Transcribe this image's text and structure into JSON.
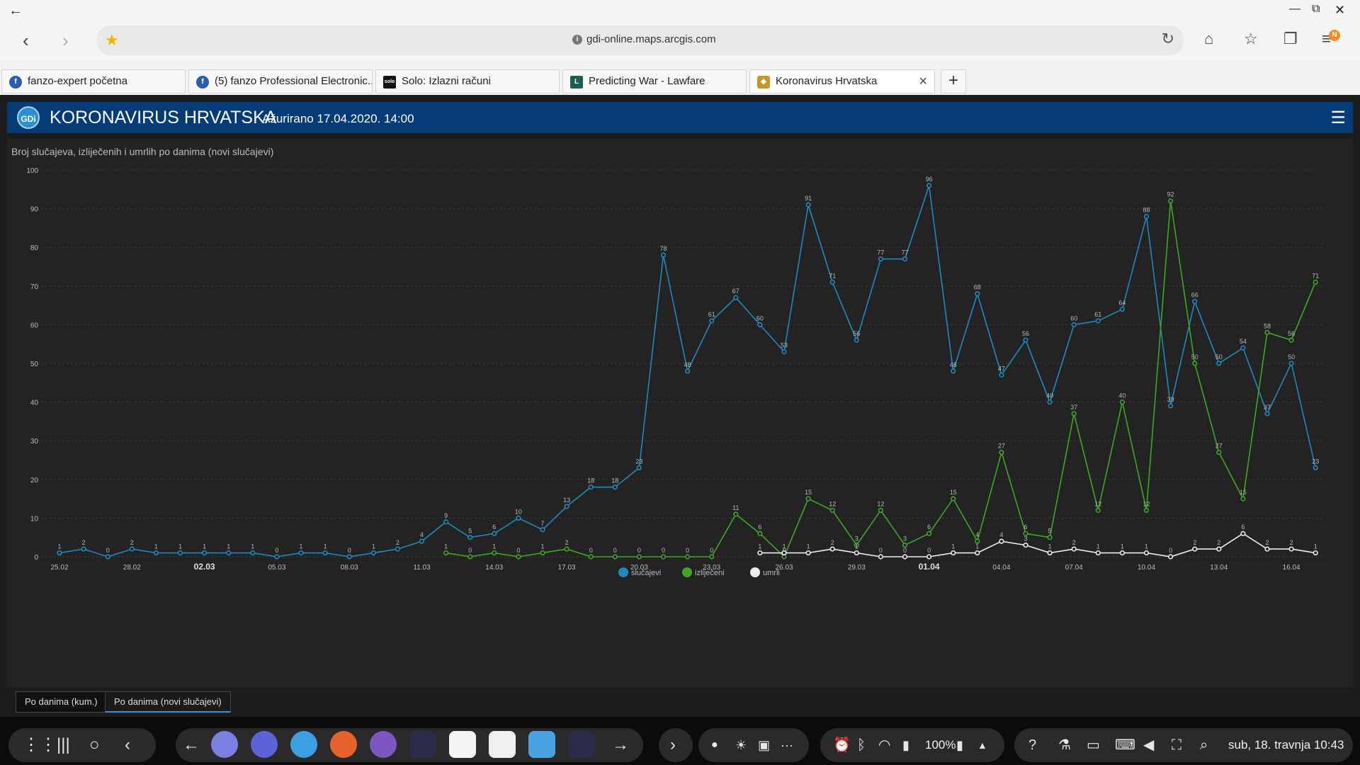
{
  "browser": {
    "url": "gdi-online.maps.arcgis.com",
    "menu_badge": "N",
    "tabs": [
      {
        "label": "fanzo-expert početna",
        "favicon": "f",
        "color": "#2a5db0"
      },
      {
        "label": "(5) fanzo Professional Electronic...",
        "favicon": "f",
        "color": "#2a5db0"
      },
      {
        "label": "Solo: Izlazni računi",
        "favicon": "solo",
        "color": "#111111"
      },
      {
        "label": "Predicting War - Lawfare",
        "favicon": "L",
        "color": "#1f5d52"
      },
      {
        "label": "Koronavirus Hrvatska",
        "favicon": "shield",
        "color": "#c9952a"
      }
    ]
  },
  "app": {
    "logo": "GDi",
    "title": "KORONAVIRUS HRVATSKA",
    "updated": "Ažurirano 17.04.2020. 14:00",
    "chart_title": "Broj slučajeva, izliječenih i umrlih po danima (novi slučajevi)",
    "bottom_tabs": [
      "Po danima (kum.)",
      "Po danima (novi slučajevi)"
    ],
    "active_bottom_tab": 1
  },
  "chart_data": {
    "type": "line",
    "title": "Broj slučajeva, izliječenih i umrlih po danima (novi slučajevi)",
    "x_start": "25.02",
    "x_tick_labels": [
      "25.02",
      "28.02",
      "02.03",
      "05.03",
      "08.03",
      "11.03",
      "14.03",
      "17.03",
      "20.03",
      "23.03",
      "26.03",
      "29.03",
      "01.04",
      "04.04",
      "07.04",
      "10.04",
      "13.04",
      "16.04"
    ],
    "bold_ticks": [
      "02.03",
      "01.04"
    ],
    "y_ticks": [
      0,
      10,
      20,
      30,
      40,
      50,
      60,
      70,
      80,
      90,
      100
    ],
    "ylim": [
      0,
      100
    ],
    "grid": true,
    "legend_position": "bottom-center",
    "series": [
      {
        "name": "slučajevi",
        "color": "#1f8ac0",
        "values": [
          1,
          2,
          0,
          2,
          1,
          1,
          1,
          1,
          1,
          0,
          1,
          1,
          0,
          1,
          2,
          4,
          9,
          5,
          6,
          10,
          7,
          13,
          18,
          18,
          23,
          78,
          48,
          61,
          67,
          60,
          53,
          91,
          71,
          56,
          77,
          77,
          96,
          48,
          68,
          47,
          56,
          40,
          60,
          61,
          64,
          88,
          39,
          66,
          50,
          54,
          37,
          50,
          23
        ]
      },
      {
        "name": "izliječeni",
        "color": "#3fa822",
        "values": [
          null,
          null,
          null,
          null,
          null,
          null,
          null,
          null,
          null,
          null,
          null,
          null,
          null,
          null,
          null,
          null,
          1,
          0,
          1,
          0,
          1,
          2,
          0,
          0,
          0,
          0,
          0,
          0,
          11,
          6,
          0,
          15,
          12,
          3,
          12,
          3,
          6,
          15,
          4,
          27,
          6,
          5,
          37,
          12,
          40,
          12,
          92,
          50,
          27,
          15,
          58,
          56,
          71
        ]
      },
      {
        "name": "umrli",
        "color": "#eeeeee",
        "values": [
          null,
          null,
          null,
          null,
          null,
          null,
          null,
          null,
          null,
          null,
          null,
          null,
          null,
          null,
          null,
          null,
          null,
          null,
          null,
          null,
          null,
          null,
          null,
          null,
          null,
          null,
          null,
          null,
          null,
          1,
          1,
          1,
          2,
          1,
          0,
          0,
          0,
          1,
          1,
          4,
          3,
          1,
          2,
          1,
          1,
          1,
          0,
          2,
          2,
          6,
          2,
          2,
          1
        ]
      }
    ]
  },
  "taskbar": {
    "battery": "100%",
    "clock": "sub, 18. travnja 10:43"
  }
}
